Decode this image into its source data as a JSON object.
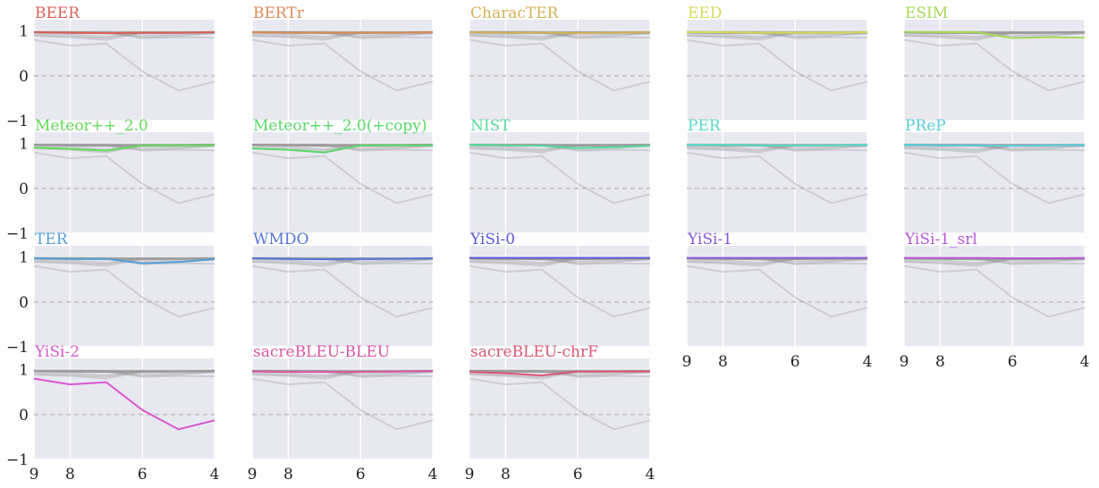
{
  "chart_data": {
    "type": "line",
    "x": [
      9,
      8,
      7,
      6,
      5,
      4
    ],
    "xlim": [
      9,
      4
    ],
    "xticks": [
      9,
      8,
      6,
      4
    ],
    "ylim": [
      -1,
      1.25
    ],
    "yticks": [
      1,
      0,
      {
        "value": -1,
        "label": "−1"
      }
    ],
    "grid": true,
    "background_color": "#e8e8f1",
    "others_color": "#9a9a9a",
    "series": [
      {
        "name": "BEER",
        "color": "#db5f57",
        "values": [
          0.97,
          0.96,
          0.95,
          0.96,
          0.96,
          0.97
        ]
      },
      {
        "name": "BERTr",
        "color": "#db8a57",
        "values": [
          0.97,
          0.96,
          0.96,
          0.96,
          0.96,
          0.97
        ]
      },
      {
        "name": "CharacTER",
        "color": "#d3b257",
        "values": [
          0.97,
          0.96,
          0.96,
          0.95,
          0.96,
          0.97
        ]
      },
      {
        "name": "EED",
        "color": "#d6d957",
        "values": [
          0.97,
          0.97,
          0.96,
          0.96,
          0.96,
          0.97
        ]
      },
      {
        "name": "ESIM",
        "color": "#a5d957",
        "values": [
          0.98,
          0.97,
          0.97,
          0.84,
          0.86,
          0.85
        ]
      },
      {
        "name": "Meteor++_2.0",
        "color": "#62d957",
        "values": [
          0.91,
          0.88,
          0.84,
          0.96,
          0.96,
          0.96
        ]
      },
      {
        "name": "Meteor++_2.0(+copy)",
        "color": "#57d96a",
        "values": [
          0.89,
          0.86,
          0.8,
          0.96,
          0.96,
          0.96
        ]
      },
      {
        "name": "NIST",
        "color": "#57d99a",
        "values": [
          0.97,
          0.96,
          0.95,
          0.9,
          0.92,
          0.95
        ]
      },
      {
        "name": "PER",
        "color": "#57d9c6",
        "values": [
          0.97,
          0.97,
          0.96,
          0.96,
          0.96,
          0.97
        ]
      },
      {
        "name": "PReP",
        "color": "#57cdd9",
        "values": [
          0.97,
          0.96,
          0.96,
          0.95,
          0.96,
          0.97
        ]
      },
      {
        "name": "TER",
        "color": "#579ed9",
        "values": [
          0.97,
          0.96,
          0.96,
          0.86,
          0.89,
          0.95
        ]
      },
      {
        "name": "WMDO",
        "color": "#5774d9",
        "values": [
          0.97,
          0.96,
          0.95,
          0.96,
          0.96,
          0.97
        ]
      },
      {
        "name": "YiSi-0",
        "color": "#5f57d9",
        "values": [
          0.98,
          0.98,
          0.98,
          0.98,
          0.98,
          0.98
        ]
      },
      {
        "name": "YiSi-1",
        "color": "#8a57d9",
        "values": [
          0.98,
          0.98,
          0.98,
          0.98,
          0.98,
          0.98
        ]
      },
      {
        "name": "YiSi-1_srl",
        "color": "#b757d9",
        "values": [
          0.98,
          0.98,
          0.98,
          0.97,
          0.97,
          0.98
        ]
      },
      {
        "name": "YiSi-2",
        "color": "#d957d1",
        "values": [
          0.8,
          0.67,
          0.72,
          0.1,
          -0.33,
          -0.13
        ]
      },
      {
        "name": "sacreBLEU-BLEU",
        "color": "#d957a2",
        "values": [
          0.96,
          0.95,
          0.95,
          0.95,
          0.96,
          0.97
        ]
      },
      {
        "name": "sacreBLEU-chrF",
        "color": "#d95775",
        "values": [
          0.95,
          0.92,
          0.87,
          0.96,
          0.96,
          0.96
        ]
      }
    ]
  }
}
